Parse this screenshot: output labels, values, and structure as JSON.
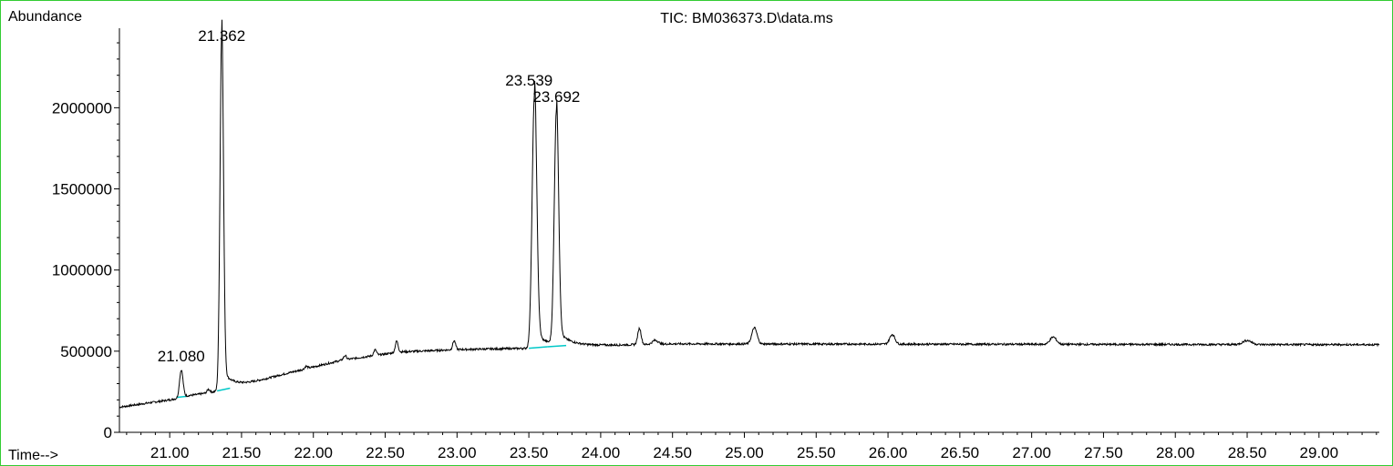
{
  "chart_data": {
    "type": "line",
    "title": "TIC: BM036373.D\\data.ms",
    "ylabel": "Abundance",
    "xlabel": "Time-->",
    "xlim": [
      20.65,
      29.42
    ],
    "ylim": [
      0,
      2490000
    ],
    "x_ticks": [
      21.0,
      21.5,
      22.0,
      22.5,
      23.0,
      23.5,
      24.0,
      24.5,
      25.0,
      25.5,
      26.0,
      26.5,
      27.0,
      27.5,
      28.0,
      28.5,
      29.0
    ],
    "x_tick_labels": [
      "21.00",
      "21.50",
      "22.00",
      "22.50",
      "23.00",
      "23.50",
      "24.00",
      "24.50",
      "25.00",
      "25.50",
      "26.00",
      "26.50",
      "27.00",
      "27.50",
      "28.00",
      "28.50",
      "29.00"
    ],
    "y_ticks": [
      0,
      500000,
      1000000,
      1500000,
      2000000
    ],
    "y_tick_labels": [
      "0",
      "500000",
      "1000000",
      "1500000",
      "2000000"
    ],
    "peaks": [
      {
        "label": "21.080",
        "rt": 21.08,
        "apex": 380000,
        "width": 0.012
      },
      {
        "label": "21.362",
        "rt": 21.362,
        "apex": 2450000,
        "width": 0.012
      },
      {
        "label": "23.539",
        "rt": 23.539,
        "apex": 2080000,
        "width": 0.016
      },
      {
        "label": "23.692",
        "rt": 23.692,
        "apex": 1970000,
        "width": 0.015
      }
    ],
    "baseline": [
      {
        "x": 20.65,
        "y": 155000
      },
      {
        "x": 21.0,
        "y": 200000
      },
      {
        "x": 21.4,
        "y": 265000
      },
      {
        "x": 21.8,
        "y": 360000
      },
      {
        "x": 22.2,
        "y": 445000
      },
      {
        "x": 22.6,
        "y": 495000
      },
      {
        "x": 23.0,
        "y": 510000
      },
      {
        "x": 23.5,
        "y": 518000
      },
      {
        "x": 24.0,
        "y": 535000
      },
      {
        "x": 24.5,
        "y": 545000
      },
      {
        "x": 29.42,
        "y": 540000
      }
    ],
    "minor_peaks": [
      {
        "rt": 21.27,
        "height": 20000,
        "width": 0.01
      },
      {
        "rt": 21.95,
        "height": 15000,
        "width": 0.01
      },
      {
        "rt": 22.22,
        "height": 25000,
        "width": 0.01
      },
      {
        "rt": 22.43,
        "height": 35000,
        "width": 0.01
      },
      {
        "rt": 22.58,
        "height": 70000,
        "width": 0.01
      },
      {
        "rt": 22.98,
        "height": 55000,
        "width": 0.01
      },
      {
        "rt": 24.27,
        "height": 100000,
        "width": 0.012
      },
      {
        "rt": 24.38,
        "height": 25000,
        "width": 0.02
      },
      {
        "rt": 25.07,
        "height": 100000,
        "width": 0.018
      },
      {
        "rt": 26.03,
        "height": 60000,
        "width": 0.018
      },
      {
        "rt": 27.15,
        "height": 45000,
        "width": 0.022
      },
      {
        "rt": 28.5,
        "height": 25000,
        "width": 0.03
      }
    ],
    "integration_baselines": [
      {
        "x1": 21.05,
        "y1": 215000,
        "x2": 21.12,
        "y2": 222000
      },
      {
        "x1": 21.33,
        "y1": 255000,
        "x2": 21.42,
        "y2": 272000
      },
      {
        "x1": 23.5,
        "y1": 518000,
        "x2": 23.63,
        "y2": 527000
      },
      {
        "x1": 23.63,
        "y1": 527000,
        "x2": 23.76,
        "y2": 535000
      }
    ],
    "colors": {
      "trace": "#000000",
      "integration": "#00c8c8",
      "frame": "#33cc33"
    }
  }
}
